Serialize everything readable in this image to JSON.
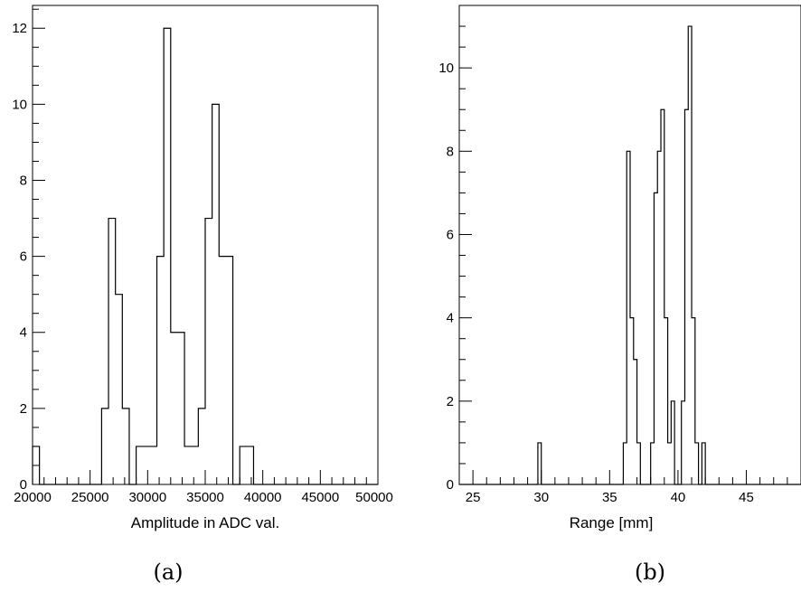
{
  "chart_data": [
    {
      "type": "bar",
      "caption": "(a)",
      "xlabel": "Amplitude in ADC val.",
      "ylabel": "",
      "xlim": [
        20000,
        50000
      ],
      "ylim": [
        0,
        12.6
      ],
      "x_ticks": [
        20000,
        25000,
        30000,
        35000,
        40000,
        45000,
        50000
      ],
      "x_tick_labels": [
        "20000",
        "25000",
        "30000",
        "35000",
        "40000",
        "45000",
        "50000"
      ],
      "y_ticks": [
        0,
        2,
        4,
        6,
        8,
        10,
        12
      ],
      "y_tick_labels": [
        "0",
        "2",
        "4",
        "6",
        "8",
        "10",
        "12"
      ],
      "histogram": {
        "bin_start": 20000,
        "bin_width": 600,
        "values": [
          1,
          0,
          0,
          0,
          0,
          0,
          0,
          0,
          0,
          0,
          2,
          7,
          5,
          2,
          0,
          1,
          1,
          1,
          6,
          12,
          4,
          4,
          1,
          1,
          2,
          7,
          10,
          6,
          6,
          0,
          1,
          1,
          0,
          0,
          0,
          0,
          0,
          0,
          0,
          0,
          0,
          0,
          0,
          0,
          0,
          0,
          0,
          0,
          0,
          0
        ]
      }
    },
    {
      "type": "bar",
      "caption": "(b)",
      "xlabel": "Range [mm]",
      "ylabel": "",
      "xlim": [
        24,
        49
      ],
      "ylim": [
        0,
        11.5
      ],
      "x_ticks": [
        25,
        30,
        35,
        40,
        45
      ],
      "x_tick_labels": [
        "25",
        "30",
        "35",
        "40",
        "45"
      ],
      "y_ticks": [
        0,
        2,
        4,
        6,
        8,
        10
      ],
      "y_tick_labels": [
        "0",
        "2",
        "4",
        "6",
        "8",
        "10"
      ],
      "histogram": {
        "bin_start": 24,
        "bin_width": 0.25,
        "values": [
          0,
          0,
          0,
          0,
          0,
          0,
          0,
          0,
          0,
          0,
          0,
          0,
          0,
          0,
          0,
          0,
          0,
          0,
          0,
          0,
          0,
          0,
          0,
          1,
          0,
          0,
          0,
          0,
          0,
          0,
          0,
          0,
          0,
          0,
          0,
          0,
          0,
          0,
          0,
          0,
          0,
          0,
          0,
          0,
          0,
          0,
          0,
          0,
          1,
          8,
          4,
          3,
          1,
          0,
          0,
          0,
          1,
          7,
          8,
          9,
          4,
          1,
          2,
          0,
          0,
          2,
          9,
          11,
          4,
          1,
          0,
          1,
          0,
          0,
          0,
          0,
          0,
          0,
          0,
          0,
          0,
          0,
          0,
          0,
          0,
          0,
          0,
          0,
          0,
          0,
          0,
          0,
          0,
          0,
          0,
          0,
          0,
          0,
          0,
          0
        ]
      }
    }
  ]
}
